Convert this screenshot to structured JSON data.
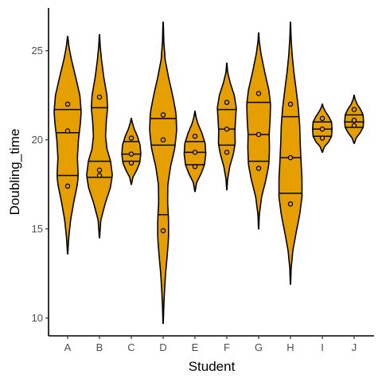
{
  "chart_data": {
    "type": "violin",
    "xlabel": "Student",
    "ylabel": "Doubling_time",
    "ylim": [
      9.0,
      27.4
    ],
    "yticks": [
      10,
      15,
      20,
      25
    ],
    "categories": [
      "A",
      "B",
      "C",
      "D",
      "E",
      "F",
      "G",
      "H",
      "I",
      "J"
    ],
    "fill_color": "#E69F00",
    "outline_color": "#000000",
    "groups": [
      {
        "name": "A",
        "min": 13.6,
        "max": 25.8,
        "quantiles": [
          18.0,
          20.4,
          21.7
        ],
        "points": [
          17.4,
          20.5,
          22.0
        ],
        "profile": [
          [
            13.6,
            0.01
          ],
          [
            14.5,
            0.08
          ],
          [
            15.5,
            0.22
          ],
          [
            16.5,
            0.45
          ],
          [
            17.5,
            0.72
          ],
          [
            18.0,
            0.78
          ],
          [
            19.0,
            0.72
          ],
          [
            20.0,
            0.8
          ],
          [
            21.0,
            0.95
          ],
          [
            21.6,
            1.0
          ],
          [
            22.5,
            0.9
          ],
          [
            23.5,
            0.6
          ],
          [
            24.5,
            0.28
          ],
          [
            25.2,
            0.1
          ],
          [
            25.8,
            0.01
          ]
        ]
      },
      {
        "name": "B",
        "min": 14.5,
        "max": 25.9,
        "quantiles": [
          17.9,
          18.8,
          21.8
        ],
        "points": [
          18.0,
          18.3,
          22.4
        ],
        "profile": [
          [
            14.5,
            0.01
          ],
          [
            15.5,
            0.1
          ],
          [
            16.5,
            0.45
          ],
          [
            17.3,
            0.8
          ],
          [
            18.0,
            0.95
          ],
          [
            18.8,
            0.82
          ],
          [
            19.5,
            0.55
          ],
          [
            20.2,
            0.45
          ],
          [
            21.0,
            0.5
          ],
          [
            21.8,
            0.6
          ],
          [
            22.5,
            0.55
          ],
          [
            23.5,
            0.32
          ],
          [
            24.5,
            0.15
          ],
          [
            25.3,
            0.05
          ],
          [
            25.9,
            0.01
          ]
        ]
      },
      {
        "name": "C",
        "min": 17.5,
        "max": 21.2,
        "quantiles": [
          18.8,
          19.2,
          19.9
        ],
        "points": [
          18.7,
          19.2,
          20.1
        ],
        "profile": [
          [
            17.5,
            0.01
          ],
          [
            17.9,
            0.12
          ],
          [
            18.3,
            0.4
          ],
          [
            18.7,
            0.62
          ],
          [
            19.2,
            0.7
          ],
          [
            19.7,
            0.65
          ],
          [
            20.2,
            0.45
          ],
          [
            20.6,
            0.22
          ],
          [
            21.0,
            0.06
          ],
          [
            21.2,
            0.01
          ]
        ]
      },
      {
        "name": "D",
        "min": 9.7,
        "max": 26.6,
        "quantiles": [
          15.8,
          19.7,
          21.2
        ],
        "points": [
          14.9,
          20.0,
          21.4
        ],
        "profile": [
          [
            9.7,
            0.01
          ],
          [
            10.5,
            0.04
          ],
          [
            11.5,
            0.1
          ],
          [
            12.5,
            0.18
          ],
          [
            13.5,
            0.3
          ],
          [
            14.5,
            0.4
          ],
          [
            15.5,
            0.4
          ],
          [
            16.5,
            0.33
          ],
          [
            17.5,
            0.35
          ],
          [
            18.5,
            0.55
          ],
          [
            19.5,
            0.85
          ],
          [
            20.5,
            1.0
          ],
          [
            21.5,
            0.95
          ],
          [
            22.5,
            0.7
          ],
          [
            23.5,
            0.4
          ],
          [
            24.5,
            0.15
          ],
          [
            25.5,
            0.05
          ],
          [
            26.6,
            0.01
          ]
        ]
      },
      {
        "name": "E",
        "min": 17.1,
        "max": 21.6,
        "quantiles": [
          18.6,
          19.3,
          19.9
        ],
        "points": [
          18.5,
          19.3,
          20.2
        ],
        "profile": [
          [
            17.1,
            0.01
          ],
          [
            17.6,
            0.12
          ],
          [
            18.1,
            0.45
          ],
          [
            18.6,
            0.7
          ],
          [
            19.2,
            0.8
          ],
          [
            19.8,
            0.75
          ],
          [
            20.4,
            0.5
          ],
          [
            20.9,
            0.22
          ],
          [
            21.3,
            0.07
          ],
          [
            21.6,
            0.01
          ]
        ]
      },
      {
        "name": "F",
        "min": 17.2,
        "max": 24.3,
        "quantiles": [
          19.7,
          20.6,
          21.7
        ],
        "points": [
          19.3,
          20.6,
          22.1
        ],
        "profile": [
          [
            17.2,
            0.01
          ],
          [
            17.8,
            0.06
          ],
          [
            18.5,
            0.22
          ],
          [
            19.2,
            0.48
          ],
          [
            19.8,
            0.62
          ],
          [
            20.5,
            0.6
          ],
          [
            21.2,
            0.65
          ],
          [
            21.8,
            0.7
          ],
          [
            22.5,
            0.55
          ],
          [
            23.2,
            0.25
          ],
          [
            23.8,
            0.06
          ],
          [
            24.3,
            0.01
          ]
        ]
      },
      {
        "name": "G",
        "min": 15.0,
        "max": 26.0,
        "quantiles": [
          18.8,
          20.3,
          22.1
        ],
        "points": [
          18.4,
          20.3,
          22.6
        ],
        "profile": [
          [
            15.0,
            0.01
          ],
          [
            15.8,
            0.05
          ],
          [
            16.8,
            0.22
          ],
          [
            17.8,
            0.55
          ],
          [
            18.6,
            0.75
          ],
          [
            19.5,
            0.8
          ],
          [
            20.3,
            0.78
          ],
          [
            21.2,
            0.85
          ],
          [
            22.0,
            0.88
          ],
          [
            22.8,
            0.75
          ],
          [
            23.8,
            0.45
          ],
          [
            24.8,
            0.18
          ],
          [
            25.5,
            0.05
          ],
          [
            26.0,
            0.01
          ]
        ]
      },
      {
        "name": "H",
        "min": 11.9,
        "max": 26.6,
        "quantiles": [
          17.0,
          19.0,
          21.3
        ],
        "points": [
          16.4,
          19.0,
          22.0
        ],
        "profile": [
          [
            11.9,
            0.01
          ],
          [
            12.8,
            0.05
          ],
          [
            13.8,
            0.18
          ],
          [
            14.8,
            0.42
          ],
          [
            15.8,
            0.68
          ],
          [
            16.8,
            0.85
          ],
          [
            17.8,
            0.85
          ],
          [
            18.8,
            0.78
          ],
          [
            19.8,
            0.72
          ],
          [
            20.8,
            0.68
          ],
          [
            21.8,
            0.58
          ],
          [
            22.8,
            0.42
          ],
          [
            23.8,
            0.25
          ],
          [
            24.8,
            0.12
          ],
          [
            25.8,
            0.04
          ],
          [
            26.6,
            0.01
          ]
        ]
      },
      {
        "name": "I",
        "min": 19.3,
        "max": 22.0,
        "quantiles": [
          20.2,
          20.6,
          21.0
        ],
        "points": [
          20.1,
          20.6,
          21.2
        ],
        "profile": [
          [
            19.3,
            0.01
          ],
          [
            19.6,
            0.15
          ],
          [
            19.9,
            0.48
          ],
          [
            20.2,
            0.68
          ],
          [
            20.6,
            0.72
          ],
          [
            21.0,
            0.68
          ],
          [
            21.3,
            0.48
          ],
          [
            21.6,
            0.22
          ],
          [
            21.85,
            0.06
          ],
          [
            22.0,
            0.01
          ]
        ]
      },
      {
        "name": "J",
        "min": 19.8,
        "max": 22.5,
        "quantiles": [
          20.7,
          21.0,
          21.4
        ],
        "points": [
          20.8,
          21.1,
          21.7
        ],
        "profile": [
          [
            19.8,
            0.01
          ],
          [
            20.1,
            0.15
          ],
          [
            20.4,
            0.45
          ],
          [
            20.7,
            0.66
          ],
          [
            21.0,
            0.7
          ],
          [
            21.4,
            0.66
          ],
          [
            21.7,
            0.48
          ],
          [
            22.0,
            0.22
          ],
          [
            22.3,
            0.06
          ],
          [
            22.5,
            0.01
          ]
        ]
      }
    ]
  }
}
